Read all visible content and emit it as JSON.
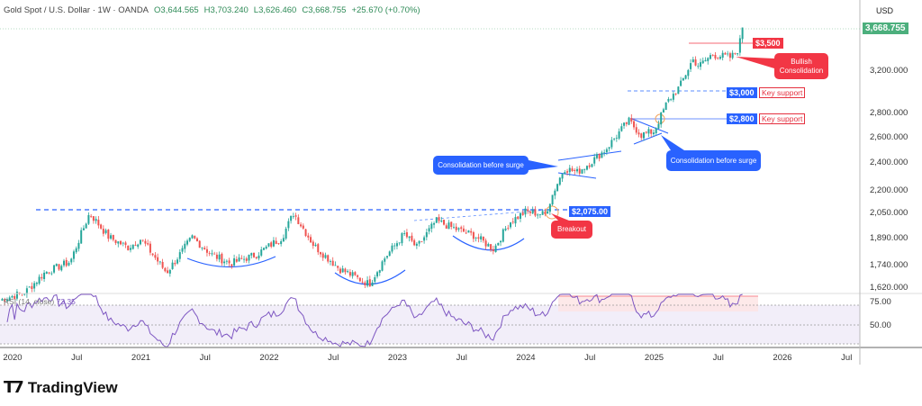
{
  "header": {
    "symbol": "Gold Spot / U.S. Dollar · 1W · OANDA",
    "open": "O3,644.565",
    "high": "H3,703.240",
    "low": "L3,626.460",
    "close": "C3,668.755",
    "change": "+25.670 (+0.70%)",
    "currency": "USD",
    "last_price": "3,668.755"
  },
  "annotations": {
    "r3500": "$3,500",
    "bullish": "Bullish Consolidation",
    "s3000": "$3,000",
    "s2800": "$2,800",
    "key_support": "Key support",
    "cons_right": "Consolidation before surge",
    "cons_left": "Consolidation before surge",
    "r2075": "$2,075.00",
    "breakout": "Breakout"
  },
  "rsi": {
    "label": "RSI (14, close)",
    "value": "73.35",
    "ticks": [
      "75.00",
      "50.00"
    ]
  },
  "brand": "TradingView",
  "colors": {
    "up": "#26a69a",
    "down": "#ef5350",
    "blue": "#2962ff",
    "red": "#f23645",
    "rsi": "#7e57c2"
  },
  "chart_data": {
    "type": "candlestick",
    "title": "Gold Spot / U.S. Dollar, 1W",
    "ylabel": "USD",
    "yscale": "log",
    "ylim": [
      1560,
      3800
    ],
    "y_ticks": [
      "3,200.000",
      "2,800.000",
      "2,600.000",
      "2,400.000",
      "2,200.000",
      "2,050.000",
      "1,890.000",
      "1,740.000",
      "1,620.000"
    ],
    "y_tick_values": [
      3200,
      2800,
      2600,
      2400,
      2200,
      2050,
      1890,
      1740,
      1620
    ],
    "x_ticks": [
      "2020",
      "Jul",
      "2021",
      "Jul",
      "2022",
      "Jul",
      "2023",
      "Jul",
      "2024",
      "Jul",
      "2025",
      "Jul",
      "2026",
      "Jul"
    ],
    "x_tick_values": [
      2020,
      2020.5,
      2021,
      2021.5,
      2022,
      2022.5,
      2023,
      2023.5,
      2024,
      2024.5,
      2025,
      2025.5,
      2026,
      2026.5
    ],
    "anchors": [
      [
        2019.9,
        1560
      ],
      [
        2020.1,
        1600
      ],
      [
        2020.25,
        1700
      ],
      [
        2020.45,
        1760
      ],
      [
        2020.55,
        1950
      ],
      [
        2020.6,
        2050
      ],
      [
        2020.75,
        1900
      ],
      [
        2020.9,
        1840
      ],
      [
        2021.0,
        1890
      ],
      [
        2021.2,
        1700
      ],
      [
        2021.4,
        1900
      ],
      [
        2021.55,
        1800
      ],
      [
        2021.7,
        1750
      ],
      [
        2021.9,
        1800
      ],
      [
        2022.1,
        1900
      ],
      [
        2022.19,
        2050
      ],
      [
        2022.35,
        1850
      ],
      [
        2022.55,
        1720
      ],
      [
        2022.78,
        1640
      ],
      [
        2022.9,
        1780
      ],
      [
        2023.05,
        1920
      ],
      [
        2023.15,
        1840
      ],
      [
        2023.3,
        2000
      ],
      [
        2023.45,
        1950
      ],
      [
        2023.6,
        1910
      ],
      [
        2023.75,
        1830
      ],
      [
        2023.87,
        1990
      ],
      [
        2024.0,
        2060
      ],
      [
        2024.15,
        2040
      ],
      [
        2024.22,
        2200
      ],
      [
        2024.3,
        2360
      ],
      [
        2024.4,
        2330
      ],
      [
        2024.5,
        2400
      ],
      [
        2024.62,
        2500
      ],
      [
        2024.8,
        2740
      ],
      [
        2024.9,
        2620
      ],
      [
        2025.0,
        2650
      ],
      [
        2025.1,
        2900
      ],
      [
        2025.2,
        3050
      ],
      [
        2025.3,
        3320
      ],
      [
        2025.35,
        3250
      ],
      [
        2025.45,
        3370
      ],
      [
        2025.6,
        3340
      ],
      [
        2025.65,
        3420
      ],
      [
        2025.7,
        3669
      ]
    ]
  }
}
